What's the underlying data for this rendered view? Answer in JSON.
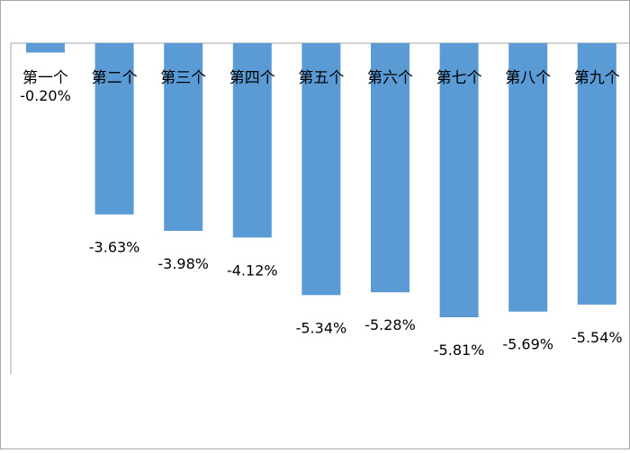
{
  "chart_data": {
    "type": "bar",
    "categories": [
      "第一个",
      "第二个",
      "第三个",
      "第四个",
      "第五个",
      "第六个",
      "第七个",
      "第八个",
      "第九个"
    ],
    "values": [
      -0.2,
      -3.63,
      -3.98,
      -4.12,
      -5.34,
      -5.28,
      -5.81,
      -5.69,
      -5.54
    ],
    "data_labels": [
      "-0.20%",
      "-3.63%",
      "-3.98%",
      "-4.12%",
      "-5.34%",
      "-5.28%",
      "-5.81%",
      "-5.69%",
      "-5.54%"
    ],
    "bar_color": "#5b9bd5",
    "ylim": [
      -6.5,
      0
    ],
    "grid": false,
    "legend": "none"
  }
}
